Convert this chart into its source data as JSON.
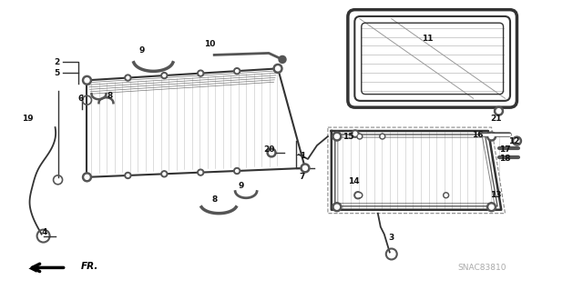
{
  "background_color": "#ffffff",
  "fig_width": 6.4,
  "fig_height": 3.19,
  "dpi": 100,
  "watermark": "SNAC83810",
  "fr_label": "FR.",
  "labels": [
    [
      "2",
      62,
      68
    ],
    [
      "5",
      62,
      80
    ],
    [
      "6",
      88,
      108
    ],
    [
      "19",
      30,
      130
    ],
    [
      "4",
      48,
      256
    ],
    [
      "8",
      120,
      105
    ],
    [
      "9",
      155,
      55
    ],
    [
      "10",
      230,
      48
    ],
    [
      "8",
      235,
      220
    ],
    [
      "9",
      265,
      205
    ],
    [
      "20",
      295,
      165
    ],
    [
      "1",
      332,
      172
    ],
    [
      "7",
      332,
      195
    ],
    [
      "11",
      470,
      42
    ],
    [
      "21",
      545,
      130
    ],
    [
      "16",
      525,
      148
    ],
    [
      "17",
      555,
      165
    ],
    [
      "18",
      555,
      175
    ],
    [
      "12",
      565,
      155
    ],
    [
      "15",
      382,
      150
    ],
    [
      "14",
      388,
      200
    ],
    [
      "13",
      545,
      215
    ],
    [
      "3",
      430,
      262
    ]
  ]
}
